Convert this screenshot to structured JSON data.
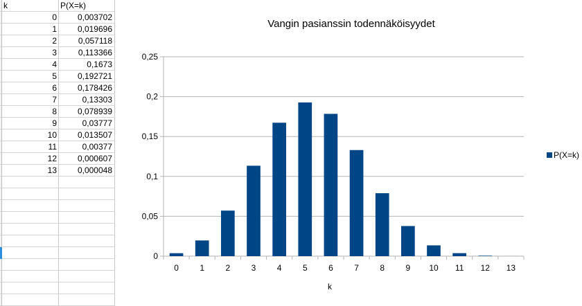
{
  "spreadsheet": {
    "headers": [
      "k",
      "P(X=k)"
    ],
    "rows": [
      [
        "0",
        "0,003702"
      ],
      [
        "1",
        "0,019696"
      ],
      [
        "2",
        "0,057118"
      ],
      [
        "3",
        "0,113366"
      ],
      [
        "4",
        "0,1673"
      ],
      [
        "5",
        "0,192721"
      ],
      [
        "6",
        "0,178426"
      ],
      [
        "7",
        "0,13303"
      ],
      [
        "8",
        "0,078939"
      ],
      [
        "9",
        "0,03777"
      ],
      [
        "10",
        "0,013507"
      ],
      [
        "11",
        "0,00377"
      ],
      [
        "12",
        "0,000607"
      ],
      [
        "13",
        "0,000048"
      ]
    ]
  },
  "colors": {
    "bar": "#004586",
    "grid": "#b3b3b3",
    "axis": "#b3b3b3"
  },
  "chart_data": {
    "type": "bar",
    "title": "Vangin pasianssin todennäköisyydet",
    "xlabel": "k",
    "ylabel": "",
    "categories": [
      "0",
      "1",
      "2",
      "3",
      "4",
      "5",
      "6",
      "7",
      "8",
      "9",
      "10",
      "11",
      "12",
      "13"
    ],
    "series": [
      {
        "name": "P(X=k)",
        "values": [
          0.003702,
          0.019696,
          0.057118,
          0.113366,
          0.1673,
          0.192721,
          0.178426,
          0.13303,
          0.078939,
          0.03777,
          0.013507,
          0.00377,
          0.000607,
          4.8e-05
        ]
      }
    ],
    "ylim": [
      0,
      0.25
    ],
    "yticks": [
      0,
      0.05,
      0.1,
      0.15,
      0.2,
      0.25
    ],
    "ytick_labels": [
      "0",
      "0,05",
      "0,1",
      "0,15",
      "0,2",
      "0,25"
    ],
    "grid": true,
    "legend": "right"
  }
}
